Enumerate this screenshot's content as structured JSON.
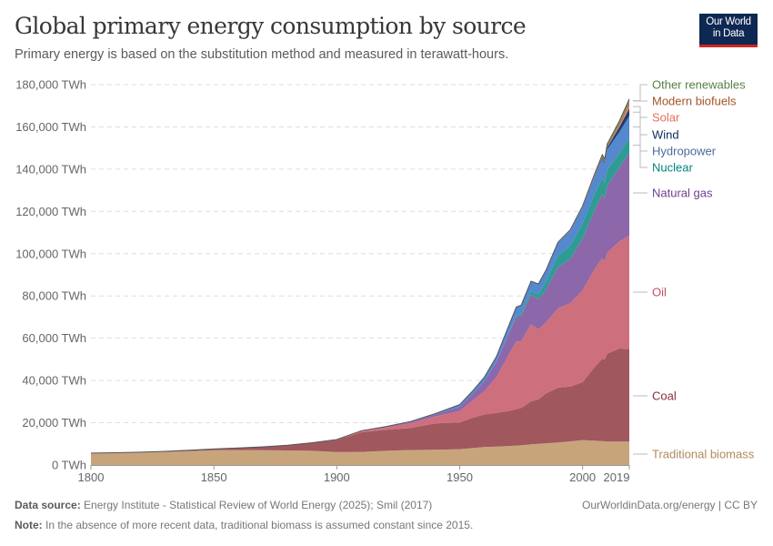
{
  "header": {
    "title": "Global primary energy consumption by source",
    "subtitle": "Primary energy is based on the substitution method and measured in terawatt-hours.",
    "logo_line1": "Our World",
    "logo_line2": "in Data"
  },
  "footer": {
    "source_label": "Data source:",
    "source_text": " Energy Institute - Statistical Review of World Energy (2025); Smil (2017)",
    "note_label": "Note:",
    "note_text": " In the absence of more recent data, traditional biomass is assumed constant since 2015.",
    "link": "OurWorldinData.org/energy | CC BY"
  },
  "chart_data": {
    "type": "area",
    "stacked": true,
    "title": "Global primary energy consumption by source",
    "ylabel": "",
    "xlabel": "",
    "unit": "TWh",
    "ylim": [
      0,
      180000
    ],
    "xlim": [
      1800,
      2019
    ],
    "grid": "horizontal dashed",
    "legend": "right (inline labels)",
    "y_ticks": [
      "0 TWh",
      "20,000 TWh",
      "40,000 TWh",
      "60,000 TWh",
      "80,000 TWh",
      "100,000 TWh",
      "120,000 TWh",
      "140,000 TWh",
      "160,000 TWh",
      "180,000 TWh"
    ],
    "x_ticks": [
      "1800",
      "1850",
      "1900",
      "1950",
      "2000",
      "2019"
    ],
    "x": [
      1800,
      1810,
      1820,
      1830,
      1840,
      1850,
      1860,
      1870,
      1880,
      1890,
      1900,
      1910,
      1920,
      1930,
      1940,
      1950,
      1955,
      1960,
      1965,
      1970,
      1973,
      1975,
      1979,
      1982,
      1985,
      1990,
      1995,
      2000,
      2005,
      2008,
      2009,
      2010,
      2015,
      2019
    ],
    "series": [
      {
        "name": "Traditional biomass",
        "color": "#C8A47B",
        "label_color": "#B08A5C",
        "values": [
          5556,
          5700,
          5900,
          6200,
          6600,
          7000,
          7100,
          7000,
          6900,
          6700,
          6100,
          6200,
          6700,
          7100,
          7200,
          7500,
          8000,
          8500,
          8700,
          9000,
          9200,
          9300,
          9800,
          10000,
          10300,
          10700,
          11200,
          11800,
          11500,
          11300,
          11200,
          11100,
          11100,
          11100
        ]
      },
      {
        "name": "Coal",
        "color": "#A0575E",
        "label_color": "#883039",
        "values": [
          97,
          128,
          153,
          264,
          356,
          569,
          1000,
          1600,
          2500,
          3800,
          5700,
          9300,
          10000,
          10400,
          12500,
          12600,
          14300,
          15400,
          16000,
          16500,
          17300,
          17700,
          20300,
          21000,
          23500,
          25900,
          25900,
          27400,
          35000,
          39000,
          38700,
          41600,
          44000,
          43800
        ]
      },
      {
        "name": "Oil",
        "color": "#CE6F7E",
        "label_color": "#C15065",
        "values": [
          0,
          0,
          0,
          0,
          0,
          0,
          0,
          0,
          0,
          20,
          180,
          500,
          1100,
          2300,
          3300,
          5400,
          8000,
          11000,
          17000,
          26800,
          32000,
          31500,
          36500,
          33200,
          33500,
          37600,
          39500,
          43500,
          46500,
          47500,
          46500,
          47700,
          50800,
          53600
        ]
      },
      {
        "name": "Natural gas",
        "color": "#8C67AA",
        "label_color": "#6D3E91",
        "values": [
          0,
          0,
          0,
          0,
          0,
          0,
          0,
          0,
          0,
          10,
          64,
          190,
          270,
          600,
          900,
          2100,
          3000,
          4600,
          7000,
          10000,
          11800,
          12000,
          14000,
          14200,
          15500,
          19400,
          21000,
          24400,
          28000,
          30500,
          29800,
          31800,
          35000,
          39300
        ]
      },
      {
        "name": "Nuclear",
        "color": "#2E9C93",
        "label_color": "#00847E",
        "values": [
          0,
          0,
          0,
          0,
          0,
          0,
          0,
          0,
          0,
          0,
          0,
          0,
          0,
          0,
          0,
          0,
          0,
          0,
          100,
          200,
          550,
          950,
          1700,
          2300,
          3900,
          5500,
          6300,
          7300,
          7700,
          7600,
          7500,
          7500,
          6800,
          7000
        ]
      },
      {
        "name": "Hydropower",
        "color": "#5488CF",
        "label_color": "#4C6A9C",
        "values": [
          0,
          0,
          0,
          0,
          0,
          0,
          0,
          0,
          0,
          0,
          0,
          30,
          100,
          200,
          400,
          1000,
          1400,
          2000,
          2600,
          3500,
          3900,
          4200,
          4700,
          5000,
          5300,
          6000,
          6900,
          7500,
          8300,
          9000,
          9000,
          9600,
          10000,
          10400
        ]
      },
      {
        "name": "Wind",
        "color": "#1E3C6C",
        "label_color": "#0E2A5C",
        "values": [
          0,
          0,
          0,
          0,
          0,
          0,
          0,
          0,
          0,
          0,
          0,
          0,
          0,
          0,
          0,
          0,
          0,
          0,
          0,
          0,
          0,
          0,
          0,
          0,
          0,
          10,
          20,
          80,
          280,
          600,
          750,
          930,
          2300,
          3500
        ]
      },
      {
        "name": "Solar",
        "color": "#E5806B",
        "label_color": "#E56E5A",
        "values": [
          0,
          0,
          0,
          0,
          0,
          0,
          0,
          0,
          0,
          0,
          0,
          0,
          0,
          0,
          0,
          0,
          0,
          0,
          0,
          0,
          0,
          0,
          0,
          0,
          0,
          0,
          0,
          3,
          10,
          30,
          50,
          90,
          700,
          1800
        ]
      },
      {
        "name": "Modern biofuels",
        "color": "#B06A3C",
        "label_color": "#A2552A",
        "values": [
          0,
          0,
          0,
          0,
          0,
          0,
          0,
          0,
          0,
          0,
          0,
          0,
          0,
          0,
          0,
          0,
          0,
          0,
          0,
          0,
          0,
          0,
          0,
          0,
          0,
          0,
          100,
          125,
          270,
          520,
          580,
          640,
          900,
          1100
        ]
      },
      {
        "name": "Other renewables",
        "color": "#6B9A58",
        "label_color": "#578145",
        "values": [
          0,
          0,
          0,
          0,
          0,
          0,
          0,
          0,
          0,
          0,
          0,
          0,
          0,
          0,
          0,
          0,
          0,
          0,
          0,
          0,
          0,
          0,
          0,
          0,
          0,
          300,
          400,
          500,
          650,
          780,
          820,
          900,
          1300,
          1600
        ]
      }
    ]
  }
}
